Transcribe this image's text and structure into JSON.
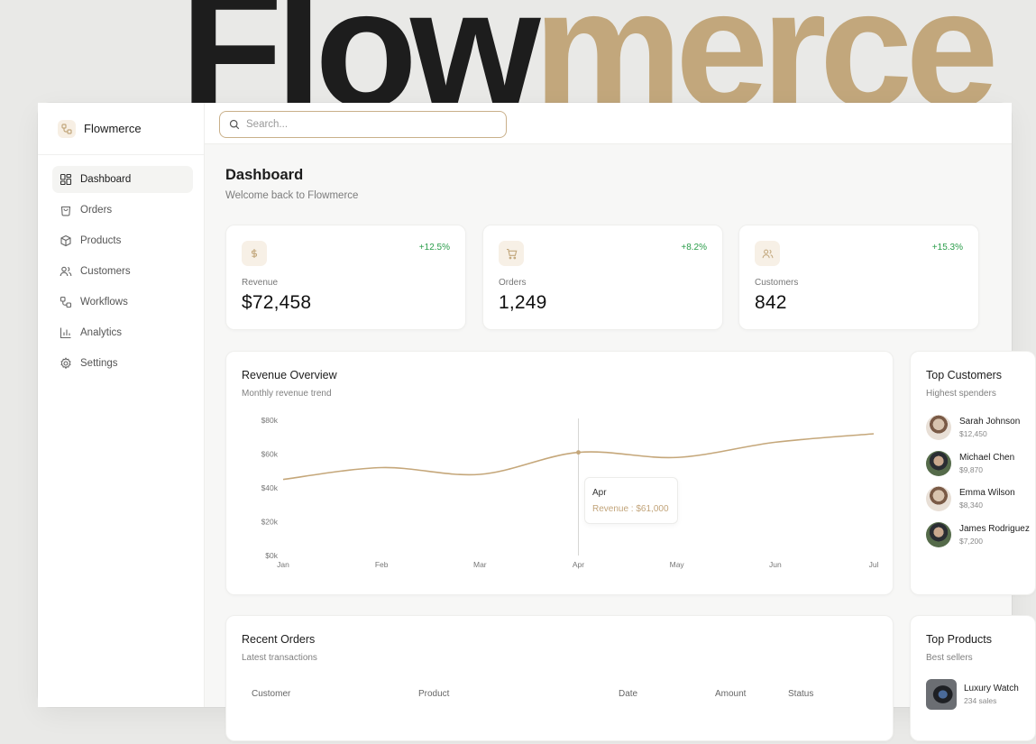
{
  "hero": {
    "part1": "Flow",
    "part2": "merce"
  },
  "brand": {
    "name": "Flowmerce"
  },
  "sidebar": {
    "items": [
      {
        "label": "Dashboard",
        "icon": "layout-grid-icon",
        "active": true
      },
      {
        "label": "Orders",
        "icon": "shopping-bag-icon"
      },
      {
        "label": "Products",
        "icon": "package-icon"
      },
      {
        "label": "Customers",
        "icon": "users-icon"
      },
      {
        "label": "Workflows",
        "icon": "workflow-icon"
      },
      {
        "label": "Analytics",
        "icon": "bar-chart-icon"
      },
      {
        "label": "Settings",
        "icon": "gear-icon"
      }
    ]
  },
  "search": {
    "placeholder": "Search...",
    "value": ""
  },
  "page": {
    "title": "Dashboard",
    "subtitle": "Welcome back to Flowmerce"
  },
  "stats": [
    {
      "label": "Revenue",
      "value": "$72,458",
      "change": "+12.5%",
      "icon": "dollar-icon"
    },
    {
      "label": "Orders",
      "value": "1,249",
      "change": "+8.2%",
      "icon": "cart-icon"
    },
    {
      "label": "Customers",
      "value": "842",
      "change": "+15.3%",
      "icon": "users-icon"
    }
  ],
  "revenue_overview": {
    "title": "Revenue Overview",
    "subtitle": "Monthly revenue trend",
    "tooltip": {
      "month": "Apr",
      "text": "Revenue : $61,000"
    }
  },
  "chart_data": {
    "type": "line",
    "title": "Revenue Overview",
    "subtitle": "Monthly revenue trend",
    "categories": [
      "Jan",
      "Feb",
      "Mar",
      "Apr",
      "May",
      "Jun",
      "Jul"
    ],
    "series": [
      {
        "name": "Revenue",
        "values": [
          45000,
          52000,
          48000,
          61000,
          58000,
          67000,
          72000
        ]
      }
    ],
    "y_ticks": [
      "$0k",
      "$20k",
      "$40k",
      "$60k",
      "$80k"
    ],
    "ylim": [
      0,
      80000
    ],
    "line_color": "#c5a77a",
    "highlight_index": 3,
    "grid": false
  },
  "top_customers": {
    "title": "Top Customers",
    "subtitle": "Highest spenders",
    "items": [
      {
        "name": "Sarah Johnson",
        "amount": "$12,450"
      },
      {
        "name": "Michael Chen",
        "amount": "$9,870"
      },
      {
        "name": "Emma Wilson",
        "amount": "$8,340"
      },
      {
        "name": "James Rodriguez",
        "amount": "$7,200"
      }
    ]
  },
  "recent_orders": {
    "title": "Recent Orders",
    "subtitle": "Latest transactions",
    "columns": [
      "Customer",
      "Product",
      "Date",
      "Amount",
      "Status"
    ]
  },
  "top_products": {
    "title": "Top Products",
    "subtitle": "Best sellers",
    "items": [
      {
        "name": "Luxury Watch",
        "sales": "234 sales"
      }
    ]
  },
  "colors": {
    "accent": "#c2a77c",
    "positive": "#2a9d4a",
    "line": "#c5a77a"
  }
}
